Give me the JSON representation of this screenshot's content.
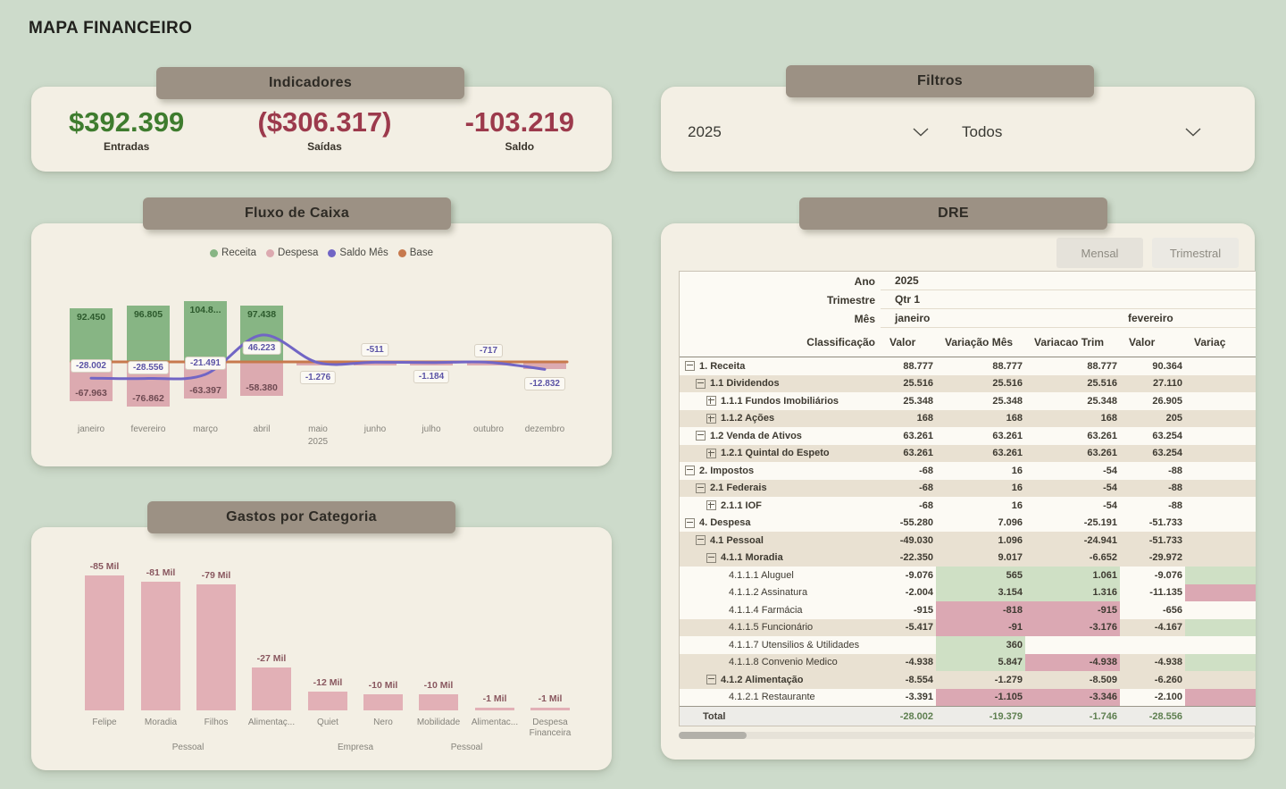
{
  "theme": {
    "background": "#cddbcb",
    "card": "#f3efe4",
    "header_pill": "#9c9184"
  },
  "page": {
    "title": "MAPA FINANCEIRO"
  },
  "indicadores": {
    "header": "Indicadores",
    "kpis": [
      {
        "value": "$392.399",
        "label": "Entradas",
        "color": "#3e7c2e"
      },
      {
        "value": "($306.317)",
        "label": "Saídas",
        "color": "#9c3a4c"
      },
      {
        "value": "-103.219",
        "label": "Saldo",
        "color": "#9c3a4c"
      }
    ]
  },
  "filtros": {
    "header": "Filtros",
    "dropdowns": [
      {
        "id": "ano",
        "value": "2025"
      },
      {
        "id": "classificacao",
        "value": "Todos"
      }
    ]
  },
  "fluxo": {
    "header": "Fluxo de Caixa"
  },
  "gastos": {
    "header": "Gastos por Categoria"
  },
  "dre": {
    "header": "DRE",
    "toggle_buttons": [
      {
        "label": "Mensal"
      },
      {
        "label": "Trimestral"
      }
    ],
    "matrix": {
      "conditional_colors": {
        "green": "#cfe0c5",
        "pink": "#dba8b3"
      },
      "meta": [
        {
          "label": "Ano",
          "value": "2025"
        },
        {
          "label": "Trimestre",
          "value": "Qtr 1"
        },
        {
          "label": "Mês",
          "value": "janeiro",
          "value2": "fevereiro"
        }
      ],
      "col_headers": [
        "Classificação",
        "Valor",
        "Variação Mês",
        "Variacao Trim",
        "Valor",
        "Variaç"
      ],
      "rows": [
        {
          "name": "1. Receita",
          "level": 1,
          "icon": "minus",
          "shade": false,
          "cells": [
            {
              "t": "88.777"
            },
            {
              "t": "88.777"
            },
            {
              "t": "88.777"
            },
            {
              "t": "90.364"
            },
            {
              "t": ""
            }
          ]
        },
        {
          "name": "1.1 Dividendos",
          "level": 2,
          "icon": "minus",
          "shade": true,
          "cells": [
            {
              "t": "25.516"
            },
            {
              "t": "25.516"
            },
            {
              "t": "25.516"
            },
            {
              "t": "27.110"
            },
            {
              "t": ""
            }
          ]
        },
        {
          "name": "1.1.1 Fundos Imobiliários",
          "level": 3,
          "icon": "plus",
          "shade": false,
          "cells": [
            {
              "t": "25.348"
            },
            {
              "t": "25.348"
            },
            {
              "t": "25.348"
            },
            {
              "t": "26.905"
            },
            {
              "t": ""
            }
          ]
        },
        {
          "name": "1.1.2 Ações",
          "level": 3,
          "icon": "plus",
          "shade": true,
          "cells": [
            {
              "t": "168"
            },
            {
              "t": "168"
            },
            {
              "t": "168"
            },
            {
              "t": "205"
            },
            {
              "t": ""
            }
          ]
        },
        {
          "name": "1.2 Venda de Ativos",
          "level": 2,
          "icon": "minus",
          "shade": false,
          "cells": [
            {
              "t": "63.261"
            },
            {
              "t": "63.261"
            },
            {
              "t": "63.261"
            },
            {
              "t": "63.254"
            },
            {
              "t": ""
            }
          ]
        },
        {
          "name": "1.2.1 Quintal do Espeto",
          "level": 3,
          "icon": "plus",
          "shade": true,
          "cells": [
            {
              "t": "63.261"
            },
            {
              "t": "63.261"
            },
            {
              "t": "63.261"
            },
            {
              "t": "63.254"
            },
            {
              "t": ""
            }
          ]
        },
        {
          "name": "2. Impostos",
          "level": 1,
          "icon": "minus",
          "shade": false,
          "cells": [
            {
              "t": "-68"
            },
            {
              "t": "16"
            },
            {
              "t": "-54"
            },
            {
              "t": "-88"
            },
            {
              "t": ""
            }
          ]
        },
        {
          "name": "2.1 Federais",
          "level": 2,
          "icon": "minus",
          "shade": true,
          "cells": [
            {
              "t": "-68"
            },
            {
              "t": "16"
            },
            {
              "t": "-54"
            },
            {
              "t": "-88"
            },
            {
              "t": ""
            }
          ]
        },
        {
          "name": "2.1.1 IOF",
          "level": 3,
          "icon": "plus",
          "shade": false,
          "cells": [
            {
              "t": "-68"
            },
            {
              "t": "16"
            },
            {
              "t": "-54"
            },
            {
              "t": "-88"
            },
            {
              "t": ""
            }
          ]
        },
        {
          "name": "4. Despesa",
          "level": 1,
          "icon": "minus",
          "shade": false,
          "cells": [
            {
              "t": "-55.280"
            },
            {
              "t": "7.096"
            },
            {
              "t": "-25.191"
            },
            {
              "t": "-51.733"
            },
            {
              "t": ""
            }
          ]
        },
        {
          "name": "4.1 Pessoal",
          "level": 2,
          "icon": "minus",
          "shade": true,
          "cells": [
            {
              "t": "-49.030"
            },
            {
              "t": "1.096"
            },
            {
              "t": "-24.941"
            },
            {
              "t": "-51.733"
            },
            {
              "t": ""
            }
          ]
        },
        {
          "name": "4.1.1 Moradia",
          "level": 3,
          "icon": "minus",
          "shade": true,
          "cells": [
            {
              "t": "-22.350"
            },
            {
              "t": "9.017"
            },
            {
              "t": "-6.652"
            },
            {
              "t": "-29.972"
            },
            {
              "t": ""
            }
          ]
        },
        {
          "name": "4.1.1.1 Aluguel",
          "level": 4,
          "icon": null,
          "shade": false,
          "cells": [
            {
              "t": "-9.076"
            },
            {
              "t": "565",
              "bg": "green"
            },
            {
              "t": "1.061",
              "bg": "green"
            },
            {
              "t": "-9.076"
            },
            {
              "t": "",
              "bg": "green"
            }
          ]
        },
        {
          "name": "4.1.1.2 Assinatura",
          "level": 4,
          "icon": null,
          "shade": false,
          "cells": [
            {
              "t": "-2.004"
            },
            {
              "t": "3.154",
              "bg": "green"
            },
            {
              "t": "1.316",
              "bg": "green"
            },
            {
              "t": "-11.135"
            },
            {
              "t": "",
              "bg": "pink"
            }
          ]
        },
        {
          "name": "4.1.1.4 Farmácia",
          "level": 4,
          "icon": null,
          "shade": false,
          "cells": [
            {
              "t": "-915"
            },
            {
              "t": "-818",
              "bg": "pink"
            },
            {
              "t": "-915",
              "bg": "pink"
            },
            {
              "t": "-656"
            },
            {
              "t": ""
            }
          ]
        },
        {
          "name": "4.1.1.5 Funcionário",
          "level": 4,
          "icon": null,
          "shade": true,
          "cells": [
            {
              "t": "-5.417"
            },
            {
              "t": "-91",
              "bg": "pink"
            },
            {
              "t": "-3.176",
              "bg": "pink"
            },
            {
              "t": "-4.167"
            },
            {
              "t": "",
              "bg": "green"
            }
          ]
        },
        {
          "name": "4.1.1.7 Utensilios & Utilidades",
          "level": 4,
          "icon": null,
          "shade": false,
          "cells": [
            {
              "t": ""
            },
            {
              "t": "360",
              "bg": "green"
            },
            {
              "t": ""
            },
            {
              "t": ""
            },
            {
              "t": ""
            }
          ]
        },
        {
          "name": "4.1.1.8 Convenio Medico",
          "level": 4,
          "icon": null,
          "shade": true,
          "cells": [
            {
              "t": "-4.938"
            },
            {
              "t": "5.847",
              "bg": "green"
            },
            {
              "t": "-4.938",
              "bg": "pink"
            },
            {
              "t": "-4.938"
            },
            {
              "t": "",
              "bg": "green"
            }
          ]
        },
        {
          "name": "4.1.2 Alimentação",
          "level": 3,
          "icon": "minus",
          "shade": true,
          "cells": [
            {
              "t": "-8.554"
            },
            {
              "t": "-1.279"
            },
            {
              "t": "-8.509"
            },
            {
              "t": "-6.260"
            },
            {
              "t": ""
            }
          ]
        },
        {
          "name": "4.1.2.1 Restaurante",
          "level": 4,
          "icon": null,
          "shade": false,
          "cells": [
            {
              "t": "-3.391"
            },
            {
              "t": "-1.105",
              "bg": "pink"
            },
            {
              "t": "-3.346",
              "bg": "pink"
            },
            {
              "t": "-2.100"
            },
            {
              "t": "",
              "bg": "pink"
            }
          ]
        }
      ],
      "total": {
        "label": "Total",
        "cells": [
          "-28.002",
          "-19.379",
          "-1.746",
          "-28.556",
          ""
        ]
      }
    }
  },
  "chart_data": [
    {
      "id": "fluxo_de_caixa",
      "type": "combo-bar-line",
      "title": "Fluxo de Caixa",
      "legend_position": "top",
      "categories": [
        "janeiro",
        "fevereiro",
        "março",
        "abril",
        "maio",
        "junho",
        "julho",
        "outubro",
        "dezembro"
      ],
      "x_axis_year": {
        "index": 4,
        "label": "2025"
      },
      "ylim": [
        -90000,
        115000
      ],
      "series": [
        {
          "name": "Receita",
          "type": "bar",
          "color": "#87b584",
          "values": [
            92450,
            96805,
            104800,
            97438,
            0,
            0,
            0,
            0,
            0
          ],
          "data_labels": [
            "92.450",
            "96.805",
            "104.8...",
            "97.438",
            "",
            "",
            "",
            "",
            ""
          ]
        },
        {
          "name": "Despesa",
          "type": "bar",
          "color": "#dcaab0",
          "values": [
            -67963,
            -76862,
            -63397,
            -58380,
            -1276,
            -511,
            -1184,
            -717,
            -12832
          ],
          "data_labels": [
            "-67.963",
            "-76.862",
            "-63.397",
            "-58.380",
            "",
            "",
            "",
            "",
            ""
          ]
        },
        {
          "name": "Saldo Mês",
          "type": "line",
          "color": "#7165c5",
          "values": [
            -28002,
            -28556,
            -21491,
            46223,
            -1276,
            -511,
            -1184,
            -717,
            -12832
          ],
          "data_labels": [
            "-28.002",
            "-28.556",
            "-21.491",
            "46.223",
            "-1.276",
            "-511",
            "-1.184",
            "-717",
            "-12.832"
          ]
        },
        {
          "name": "Base",
          "type": "line",
          "color": "#c7794d",
          "values": [
            0,
            0,
            0,
            0,
            0,
            0,
            0,
            0,
            0
          ],
          "data_labels": []
        }
      ]
    },
    {
      "id": "gastos_por_categoria",
      "type": "bar",
      "title": "Gastos por Categoria",
      "bar_color": "#e2b0b6",
      "categories": [
        "Felipe",
        "Moradia",
        "Filhos",
        "Alimentaç...",
        "Quiet",
        "Nero",
        "Mobilidade",
        "Alimentac...",
        "Despesa Financeira"
      ],
      "values_mil": [
        -85,
        -81,
        -79,
        -27,
        -12,
        -10,
        -10,
        -1,
        -1
      ],
      "data_labels": [
        "-85 Mil",
        "-81 Mil",
        "-79 Mil",
        "-27 Mil",
        "-12 Mil",
        "-10 Mil",
        "-10 Mil",
        "-1 Mil",
        "-1 Mil"
      ],
      "groups": [
        {
          "label": "Pessoal",
          "from": 0,
          "to": 3
        },
        {
          "label": "Empresa",
          "from": 4,
          "to": 5
        },
        {
          "label": "Pessoal",
          "from": 6,
          "to": 7
        }
      ]
    }
  ]
}
